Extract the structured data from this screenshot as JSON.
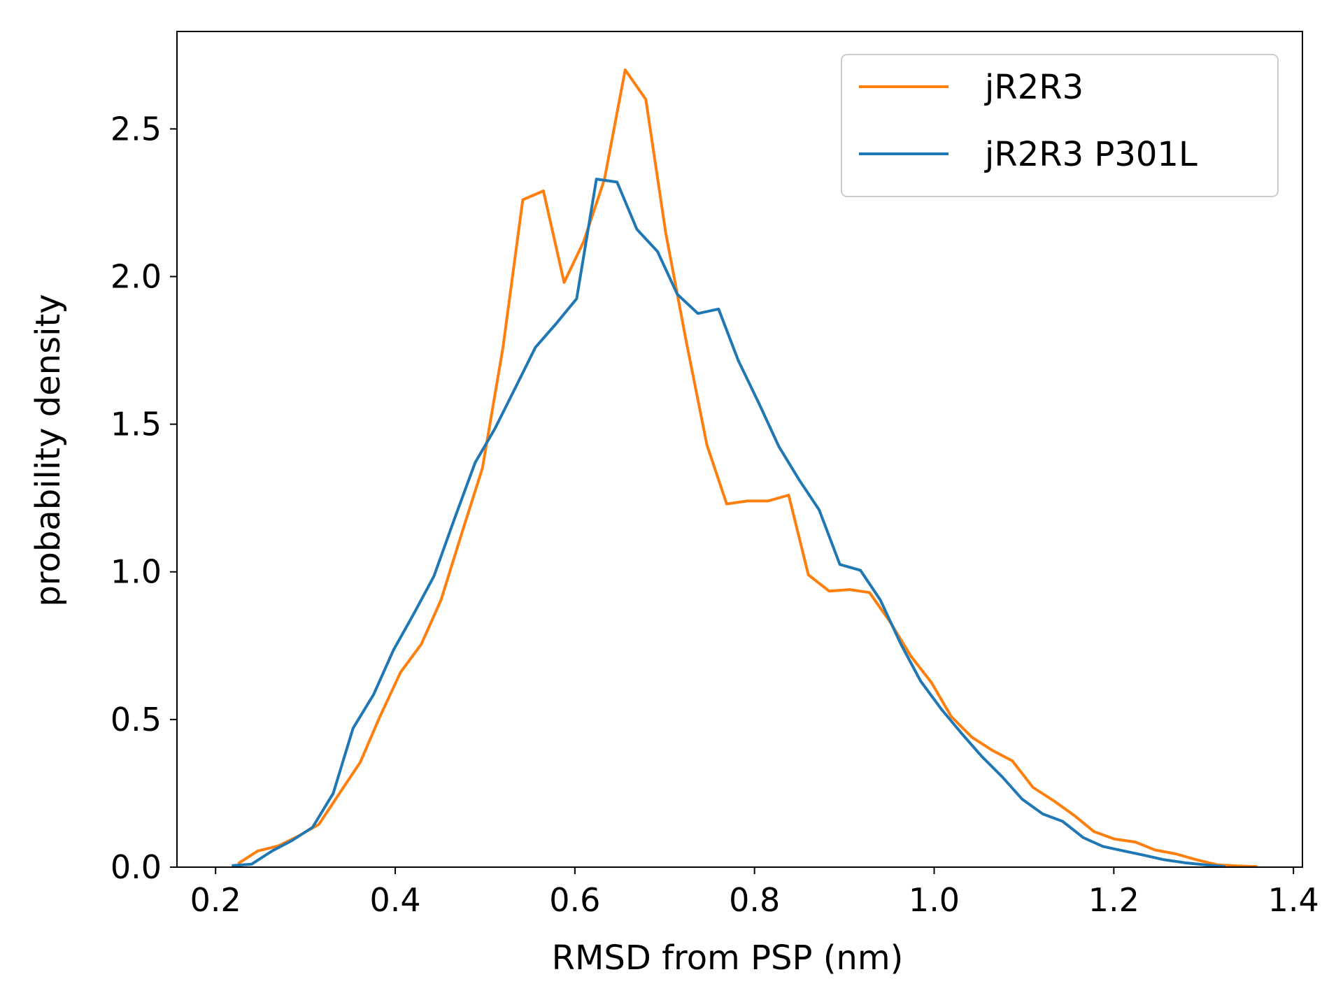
{
  "chart_data": {
    "type": "line",
    "title": "",
    "xlabel": "RMSD from PSP (nm)",
    "ylabel": "probability density",
    "xlim": [
      0.157,
      1.41
    ],
    "ylim": [
      0.0,
      2.83
    ],
    "xticks": [
      "0.2",
      "0.4",
      "0.6",
      "0.8",
      "1.0",
      "1.2",
      "1.4"
    ],
    "yticks": [
      "0.0",
      "0.5",
      "1.0",
      "1.5",
      "2.0",
      "2.5"
    ],
    "grid": false,
    "legend_position": "top-right",
    "series": [
      {
        "name": "jR2R3",
        "color": "#ff7f0e",
        "x": [
          0.225,
          0.247,
          0.27,
          0.292,
          0.315,
          0.338,
          0.361,
          0.383,
          0.406,
          0.429,
          0.451,
          0.474,
          0.497,
          0.52,
          0.542,
          0.565,
          0.588,
          0.61,
          0.633,
          0.656,
          0.679,
          0.701,
          0.724,
          0.747,
          0.769,
          0.792,
          0.815,
          0.838,
          0.86,
          0.883,
          0.906,
          0.928,
          0.951,
          0.974,
          0.997,
          1.019,
          1.042,
          1.065,
          1.087,
          1.11,
          1.133,
          1.156,
          1.178,
          1.201,
          1.224,
          1.246,
          1.269,
          1.292,
          1.315,
          1.337,
          1.36
        ],
        "y": [
          0.012,
          0.055,
          0.072,
          0.105,
          0.145,
          0.25,
          0.355,
          0.51,
          0.66,
          0.755,
          0.905,
          1.13,
          1.35,
          1.76,
          2.26,
          2.29,
          1.98,
          2.12,
          2.33,
          2.7,
          2.6,
          2.15,
          1.78,
          1.43,
          1.23,
          1.24,
          1.24,
          1.26,
          0.99,
          0.935,
          0.94,
          0.93,
          0.83,
          0.715,
          0.625,
          0.51,
          0.44,
          0.395,
          0.36,
          0.27,
          0.225,
          0.175,
          0.12,
          0.095,
          0.085,
          0.058,
          0.045,
          0.025,
          0.008,
          0.004,
          0.002
        ]
      },
      {
        "name": "jR2R3 P301L",
        "color": "#1f77b4",
        "x": [
          0.218,
          0.24,
          0.263,
          0.285,
          0.308,
          0.331,
          0.353,
          0.376,
          0.398,
          0.421,
          0.443,
          0.466,
          0.489,
          0.511,
          0.534,
          0.556,
          0.579,
          0.602,
          0.624,
          0.647,
          0.669,
          0.692,
          0.714,
          0.737,
          0.76,
          0.782,
          0.805,
          0.827,
          0.85,
          0.872,
          0.895,
          0.918,
          0.94,
          0.963,
          0.985,
          1.008,
          1.03,
          1.053,
          1.076,
          1.098,
          1.121,
          1.143,
          1.166,
          1.188,
          1.211,
          1.234,
          1.256,
          1.279,
          1.301,
          1.324
        ],
        "y": [
          0.005,
          0.01,
          0.055,
          0.09,
          0.135,
          0.25,
          0.47,
          0.585,
          0.735,
          0.86,
          0.985,
          1.18,
          1.37,
          1.485,
          1.625,
          1.76,
          1.84,
          1.925,
          2.33,
          2.32,
          2.16,
          2.085,
          1.94,
          1.875,
          1.89,
          1.715,
          1.57,
          1.425,
          1.31,
          1.21,
          1.025,
          1.005,
          0.905,
          0.755,
          0.63,
          0.535,
          0.455,
          0.375,
          0.305,
          0.23,
          0.18,
          0.155,
          0.1,
          0.07,
          0.055,
          0.04,
          0.025,
          0.015,
          0.008,
          0.002
        ]
      }
    ]
  }
}
